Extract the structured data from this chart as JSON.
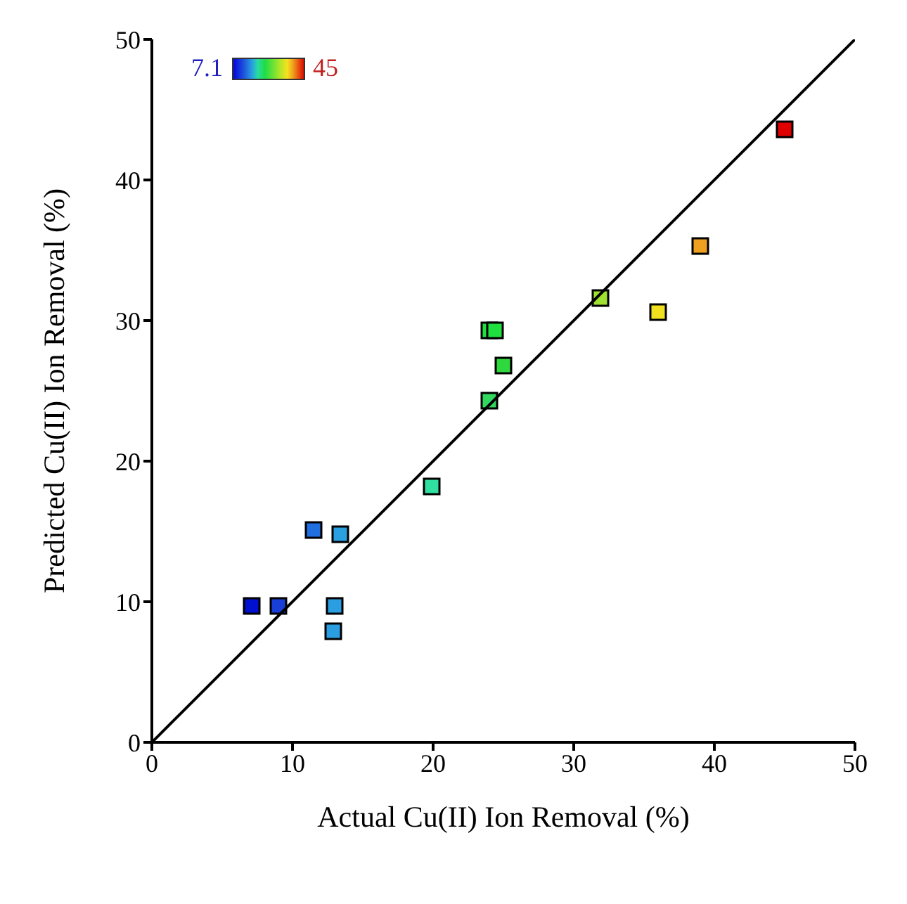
{
  "chart_data": {
    "type": "scatter",
    "xlabel": "Actual Cu(II) Ion Removal (%)",
    "ylabel": "Predicted Cu(II) Ion Removal (%)",
    "xlim": [
      0,
      50
    ],
    "ylim": [
      0,
      50
    ],
    "xticks": [
      0,
      10,
      20,
      30,
      40,
      50
    ],
    "yticks": [
      0,
      10,
      20,
      30,
      40,
      50
    ],
    "annotations": [
      "7.1",
      "45"
    ],
    "marker": "square",
    "grid": false,
    "legend": false,
    "series": [
      {
        "x": [
          7.1,
          9.0,
          11.5,
          13.4,
          13.0,
          12.9,
          19.9,
          24.0,
          24.0,
          24.4,
          25.0,
          31.9,
          36.0,
          39.0,
          45.0
        ],
        "values": [
          9.7,
          9.7,
          15.1,
          14.8,
          9.7,
          7.9,
          18.2,
          24.3,
          29.3,
          29.3,
          26.8,
          31.6,
          30.6,
          35.3,
          43.6
        ],
        "colors": [
          "#0010d0",
          "#1a3fd8",
          "#1f6fe0",
          "#2aa0e0",
          "#2a9ee0",
          "#2a9ee0",
          "#30e0a0",
          "#30d860",
          "#20e040",
          "#20e040",
          "#30d840",
          "#a0e030",
          "#f0e020",
          "#f0a020",
          "#e00000"
        ]
      },
      {
        "type": "line",
        "x": [
          0,
          50
        ],
        "values": [
          0,
          50
        ],
        "color": "#000000",
        "marker": "none"
      }
    ]
  }
}
